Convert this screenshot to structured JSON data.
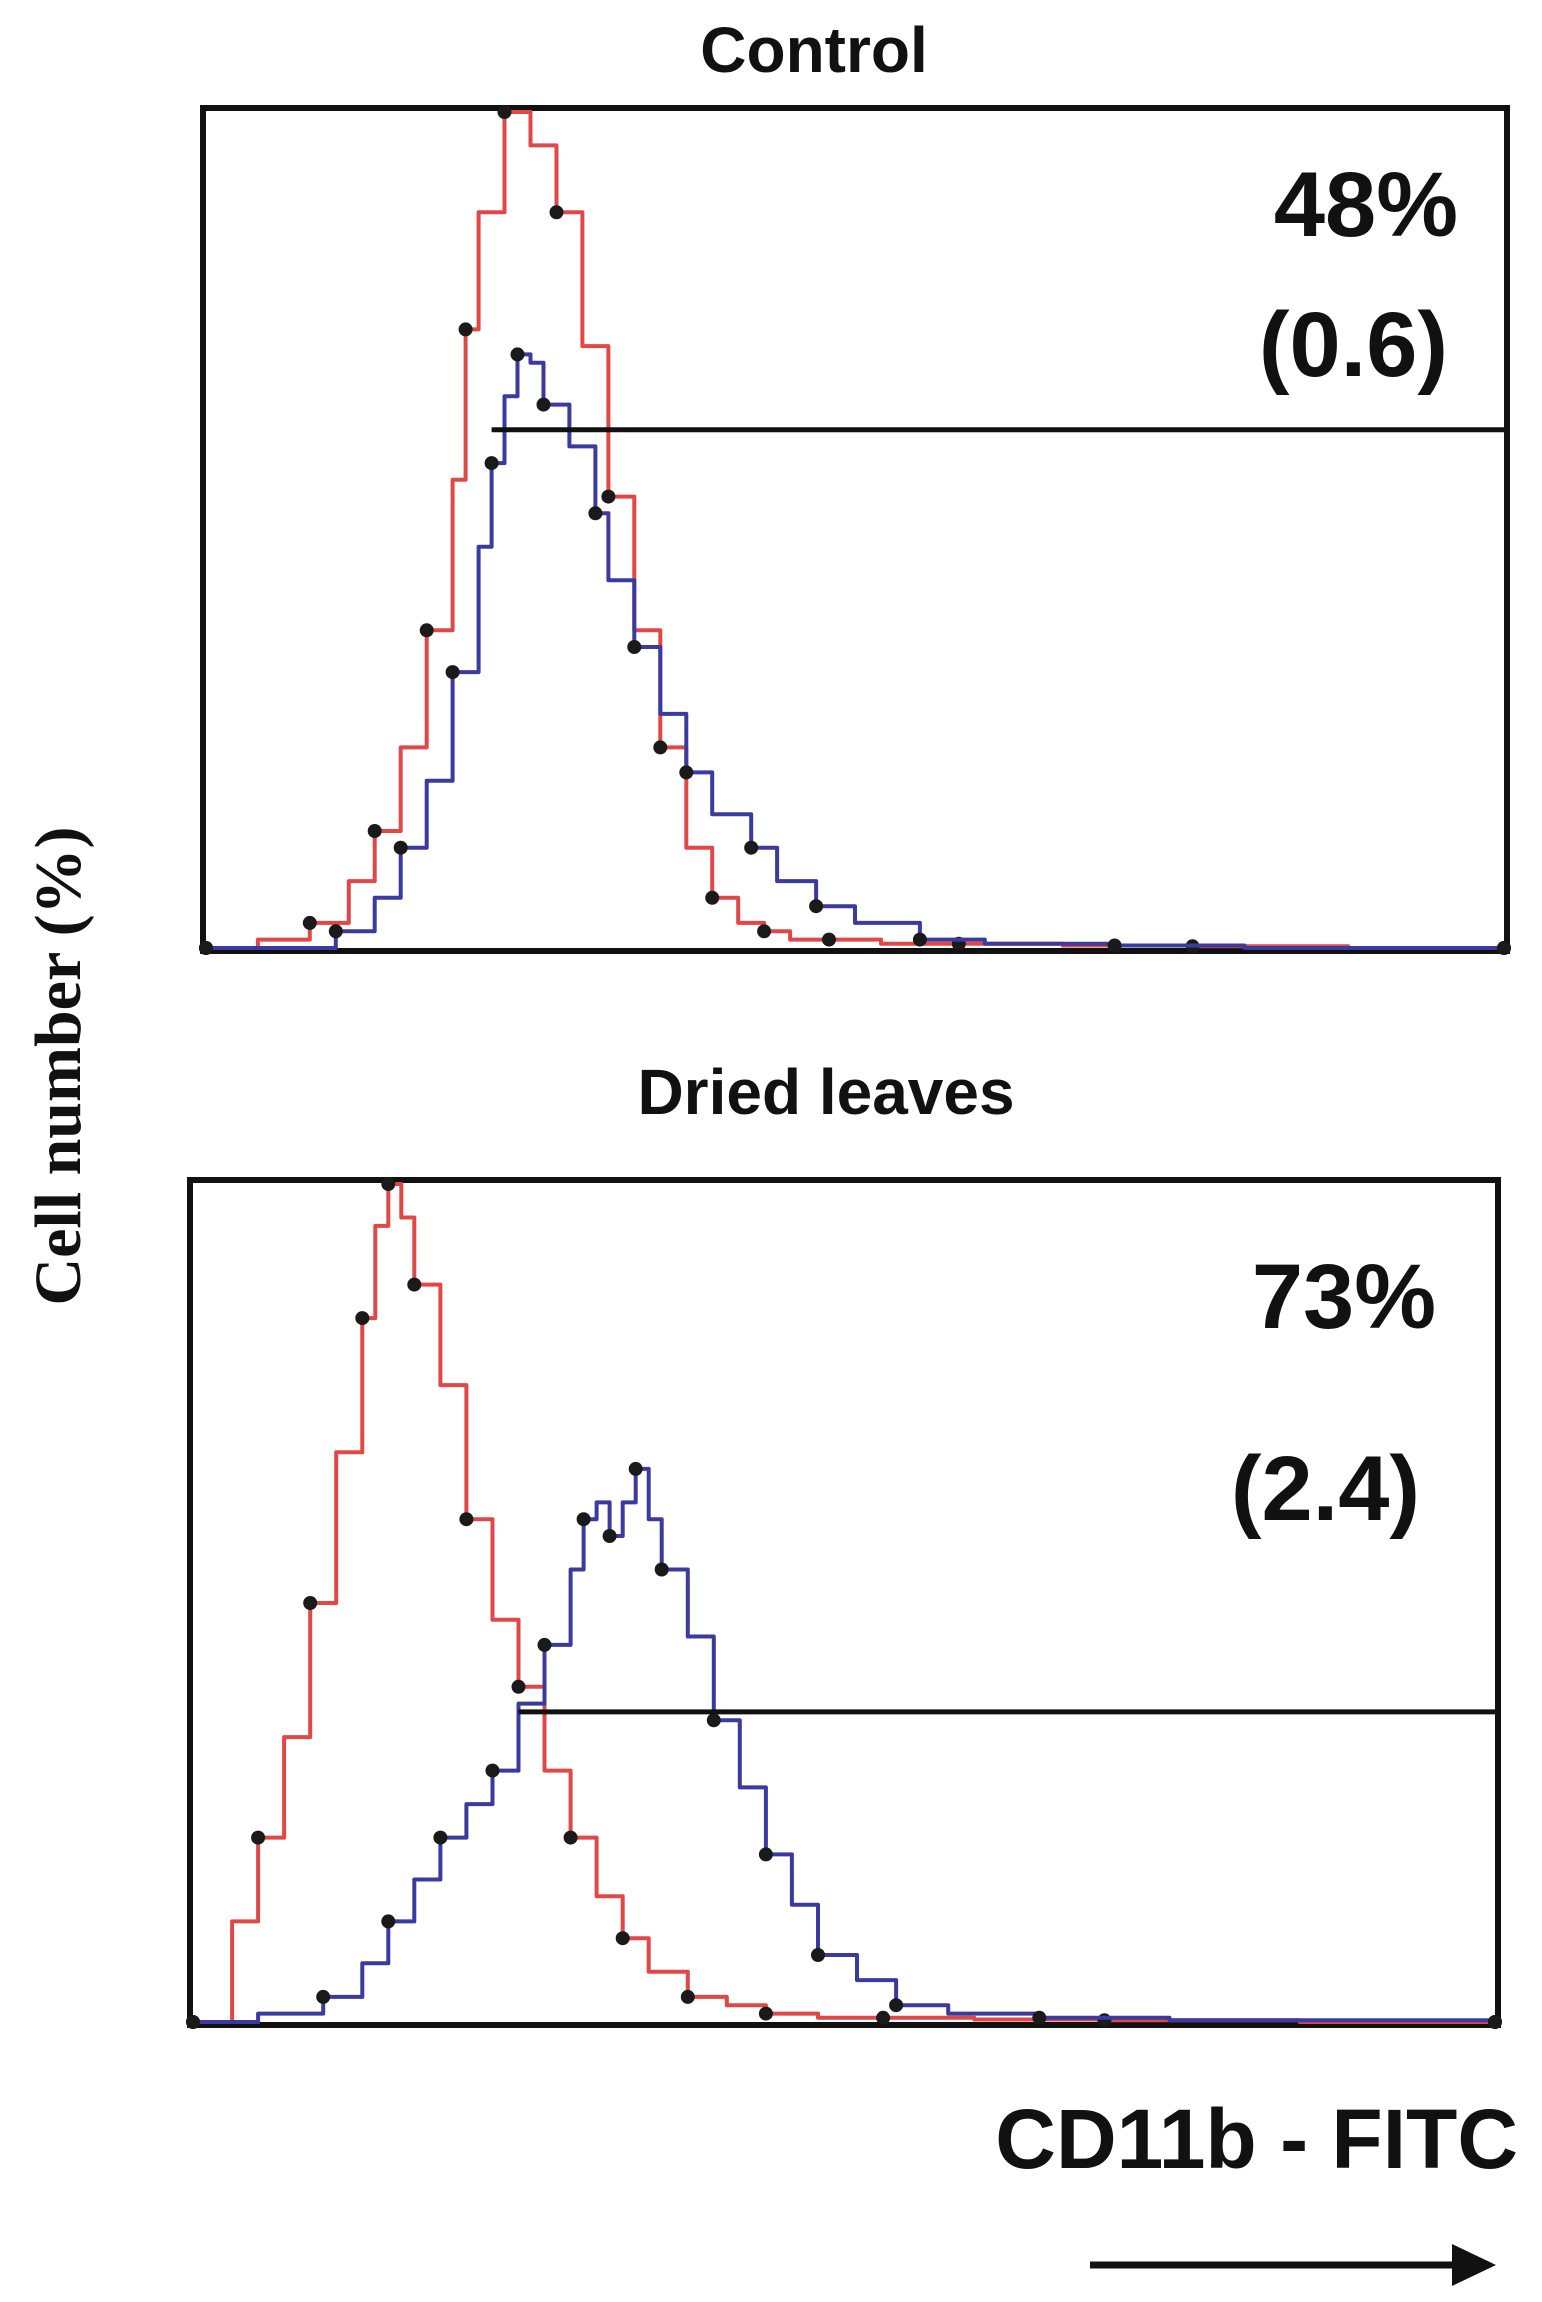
{
  "chart_data": [
    {
      "type": "line",
      "title": "Control",
      "xlabel": "CD11b - FITC",
      "ylabel": "Cell number (%)",
      "xlim": [
        0,
        100
      ],
      "ylim": [
        0,
        100
      ],
      "grid": false,
      "annotations": [
        "48%",
        "(0.6)"
      ],
      "gate": {
        "x_start": 22,
        "x_end": 100,
        "y": 62
      },
      "series": [
        {
          "color": "#e04848",
          "x": [
            0,
            4,
            8,
            11,
            13,
            15,
            17,
            19,
            20,
            21,
            23,
            25,
            27,
            29,
            31,
            33,
            35,
            37,
            39,
            41,
            43,
            45,
            48,
            52,
            58,
            66,
            76,
            88,
            100
          ],
          "y": [
            0,
            1,
            3,
            8,
            14,
            24,
            38,
            56,
            74,
            88,
            100,
            96,
            88,
            72,
            54,
            38,
            24,
            12,
            6,
            3,
            2,
            1,
            1,
            0.5,
            0.5,
            0.3,
            0.2,
            0,
            0
          ]
        },
        {
          "color": "#3a3aa0",
          "x": [
            0,
            7,
            10,
            13,
            15,
            17,
            19,
            21,
            22,
            23,
            24,
            25,
            26,
            28,
            30,
            31,
            33,
            35,
            37,
            39,
            42,
            44,
            47,
            50,
            55,
            60,
            70,
            80,
            100
          ],
          "y": [
            0,
            0,
            2,
            6,
            12,
            20,
            33,
            48,
            58,
            66,
            71,
            70,
            65,
            60,
            52,
            44,
            36,
            28,
            21,
            16,
            12,
            8,
            5,
            3,
            1,
            0.5,
            0.3,
            0,
            0
          ]
        }
      ]
    },
    {
      "type": "line",
      "title": "Dried leaves",
      "xlabel": "CD11b - FITC",
      "ylabel": "Cell number (%)",
      "xlim": [
        0,
        100
      ],
      "ylim": [
        0,
        100
      ],
      "grid": false,
      "annotations": [
        "73%",
        "(2.4)"
      ],
      "gate": {
        "x_start": 25,
        "x_end": 100,
        "y": 37
      },
      "series": [
        {
          "color": "#e04848",
          "x": [
            0,
            3,
            5,
            7,
            9,
            11,
            13,
            14,
            15,
            16,
            17,
            19,
            21,
            23,
            25,
            27,
            29,
            31,
            33,
            35,
            38,
            41,
            44,
            48,
            53,
            60,
            70,
            85,
            100
          ],
          "y": [
            0,
            12,
            22,
            34,
            50,
            68,
            84,
            95,
            100,
            96,
            88,
            76,
            60,
            48,
            40,
            30,
            22,
            15,
            10,
            6,
            3,
            2,
            1,
            0.5,
            0.5,
            0.3,
            0.2,
            0,
            0
          ]
        },
        {
          "color": "#3a3aa0",
          "x": [
            0,
            5,
            10,
            13,
            15,
            17,
            19,
            21,
            23,
            25,
            27,
            29,
            30,
            31,
            32,
            33,
            34,
            35,
            36,
            38,
            40,
            42,
            44,
            46,
            48,
            51,
            54,
            58,
            65,
            75,
            100
          ],
          "y": [
            0,
            1,
            3,
            7,
            12,
            17,
            22,
            26,
            30,
            38,
            45,
            54,
            60,
            62,
            58,
            62,
            66,
            60,
            54,
            46,
            36,
            28,
            20,
            14,
            8,
            5,
            2,
            1,
            0.5,
            0.2,
            0
          ]
        }
      ]
    }
  ]
}
